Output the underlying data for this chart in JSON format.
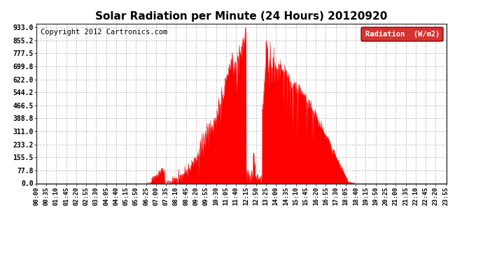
{
  "title": "Solar Radiation per Minute (24 Hours) 20120920",
  "copyright_text": "Copyright 2012 Cartronics.com",
  "legend_label": "Radiation  (W/m2)",
  "y_ticks": [
    0.0,
    77.8,
    155.5,
    233.2,
    311.0,
    388.8,
    466.5,
    544.2,
    622.0,
    699.8,
    777.5,
    855.2,
    933.0
  ],
  "ylim": [
    0.0,
    955.0
  ],
  "fill_color": "#FF0000",
  "line_color": "#FF0000",
  "background_color": "#FFFFFF",
  "grid_color": "#BBBBBB",
  "legend_bg": "#CC0000",
  "legend_text_color": "#FFFFFF",
  "title_fontsize": 11,
  "axis_fontsize": 7,
  "copyright_fontsize": 7.5
}
